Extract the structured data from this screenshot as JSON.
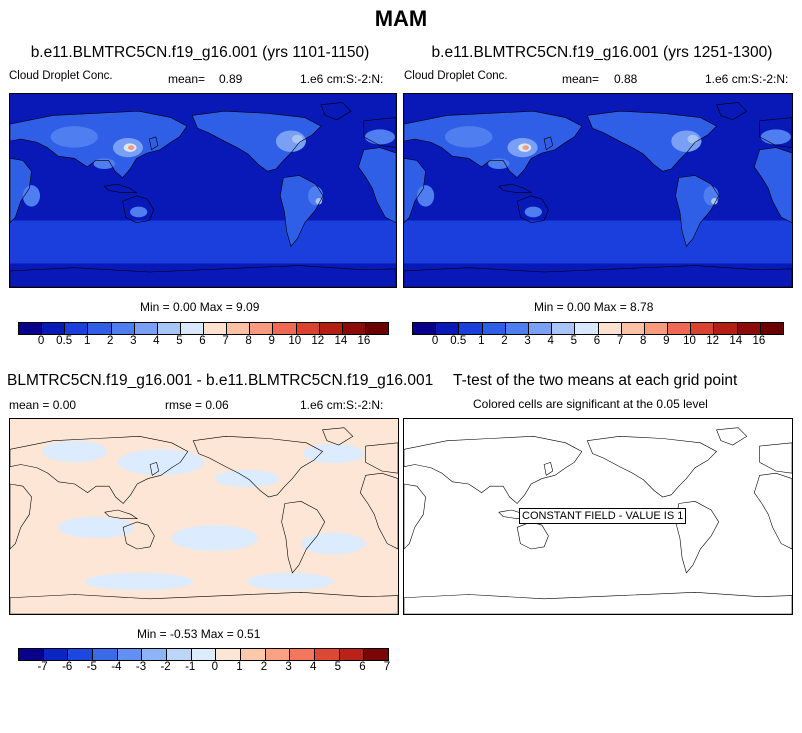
{
  "title": "MAM",
  "palettes": {
    "abs": [
      "#08008a",
      "#0819b8",
      "#1a3fdc",
      "#2f5fe6",
      "#4f7ef0",
      "#7aa0f5",
      "#a8c5fa",
      "#d8e8fd",
      "#fde2cf",
      "#fcc0a4",
      "#f79a7e",
      "#ef6a54",
      "#d9432f",
      "#b51e15",
      "#8c0a08",
      "#6b0000"
    ],
    "diff": [
      "#08008a",
      "#0b25c2",
      "#1c47e0",
      "#3a6ae8",
      "#6190f2",
      "#8fb3f7",
      "#bcd5fb",
      "#dcebfe",
      "#fde6d6",
      "#fcc9ad",
      "#f9a283",
      "#f2775c",
      "#dc4a35",
      "#b9221a",
      "#7a0605"
    ]
  },
  "panels": {
    "p1": {
      "title": "b.e11.BLMTRC5CN.f19_g16.001 (yrs 1101-1150)",
      "var": "Cloud Droplet Conc.",
      "mean_label": "mean=",
      "mean_value": "0.89",
      "units": "1.e6 cm:S:-2:N:",
      "minmax": "Min =  0.00 Max =  9.09"
    },
    "p2": {
      "title": "b.e11.BLMTRC5CN.f19_g16.001 (yrs 1251-1300)",
      "var": "Cloud Droplet Conc.",
      "mean_label": "mean=",
      "mean_value": "0.88",
      "units": "1.e6 cm:S:-2:N:",
      "minmax": "Min =  0.00 Max =  8.78"
    },
    "p3": {
      "title": "BLMTRC5CN.f19_g16.001 - b.e11.BLMTRC5CN.f19_g16.001",
      "mean": "mean =  0.00",
      "rmse": "rmse =  0.06",
      "units": "1.e6 cm:S:-2:N:",
      "minmax": "Min = -0.53 Max =  0.51"
    },
    "p4": {
      "title": "T-test of the two means at each grid point",
      "subtitle": "Colored cells are significant at the 0.05 level",
      "constant": "CONSTANT FIELD - VALUE IS 1"
    }
  },
  "colorbar_abs_labels": [
    "0",
    "0.5",
    "1",
    "2",
    "3",
    "4",
    "5",
    "6",
    "7",
    "8",
    "9",
    "10",
    "12",
    "14",
    "16"
  ],
  "colorbar_diff_labels": [
    "-7",
    "-6",
    "-5",
    "-4",
    "-3",
    "-2",
    "-1",
    "0",
    "1",
    "2",
    "3",
    "4",
    "5",
    "6",
    "7"
  ]
}
